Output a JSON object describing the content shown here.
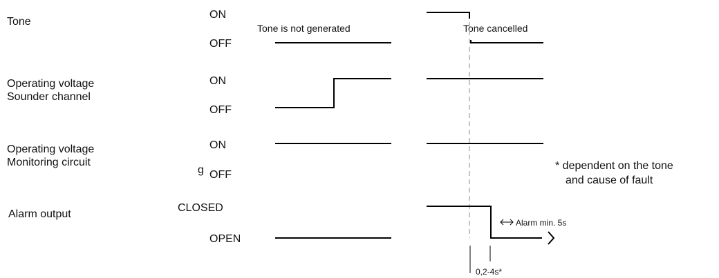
{
  "signals": {
    "tone": {
      "name_line1": "Tone",
      "high": "ON",
      "low": "OFF"
    },
    "sounder": {
      "name_line1": "Operating voltage",
      "name_line2": "Sounder channel",
      "high": "ON",
      "low": "OFF"
    },
    "monitoring": {
      "name_line1": "Operating voltage",
      "name_line2": "Monitoring circuit",
      "high": "ON",
      "low": "OFF",
      "prefix_mark": "g"
    },
    "alarm": {
      "name_line1": "Alarm output",
      "high": "CLOSED",
      "low": "OPEN"
    }
  },
  "annotations": {
    "tone_not_generated": "Tone is not generated",
    "tone_cancelled": "Tone cancelled",
    "footnote_line1": "*  dependent on the tone",
    "footnote_line2": "and cause of fault",
    "alarm_min": "Alarm min. 5s",
    "delay": "0,2-4s*"
  },
  "colors": {
    "line": "#000000",
    "dashed": "#b0b0b0"
  }
}
